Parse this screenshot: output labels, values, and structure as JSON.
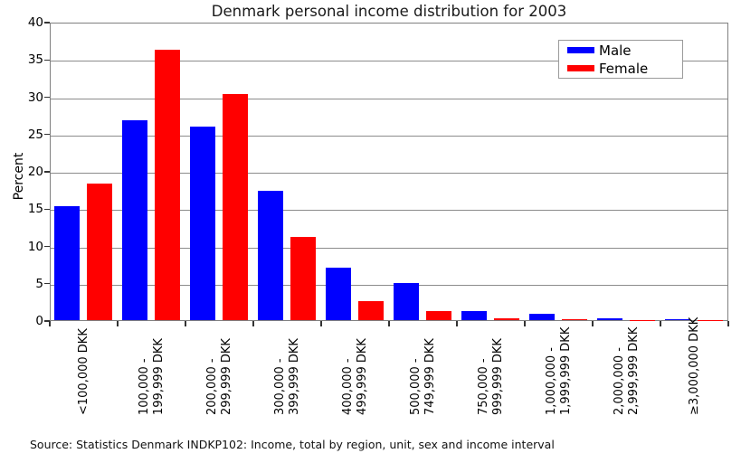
{
  "title": "Denmark personal income distribution for 2003",
  "source": "Source: Statistics Denmark INDKP102: Income, total by region, unit, sex and income interval",
  "chart_data": {
    "type": "bar",
    "title": "Denmark personal income distribution for 2003",
    "xlabel": "",
    "ylabel": "Percent",
    "ylim": [
      0,
      40
    ],
    "ytick_step": 5,
    "grid": true,
    "legend_position": "upper right",
    "categories": [
      "<100,000 DKK",
      "100,000 -\n199,999 DKK",
      "200,000 -\n299,999 DKK",
      "300,000 -\n399,999 DKK",
      "400,000 -\n499,999 DKK",
      "500,000 -\n749,999 DKK",
      "750,000 -\n999,999 DKK",
      "1,000,000 -\n1,999,999 DKK",
      "2,000,000 -\n2,999,999 DKK",
      "≥3,000,000 DKK"
    ],
    "series": [
      {
        "name": "Male",
        "color": "#0000ff",
        "values": [
          15.3,
          26.8,
          26.0,
          17.3,
          7.0,
          5.0,
          1.2,
          0.8,
          0.2,
          0.1
        ]
      },
      {
        "name": "Female",
        "color": "#ff0000",
        "values": [
          18.3,
          36.2,
          30.3,
          11.1,
          2.5,
          1.2,
          0.2,
          0.15,
          0.05,
          0.05
        ]
      }
    ]
  },
  "colors": {
    "male": "#0000ff",
    "female": "#ff0000",
    "gridline": "#8c8c8c",
    "frame": "#808080"
  },
  "legend": {
    "items": [
      {
        "label": "Male",
        "color": "#0000ff"
      },
      {
        "label": "Female",
        "color": "#ff0000"
      }
    ]
  }
}
